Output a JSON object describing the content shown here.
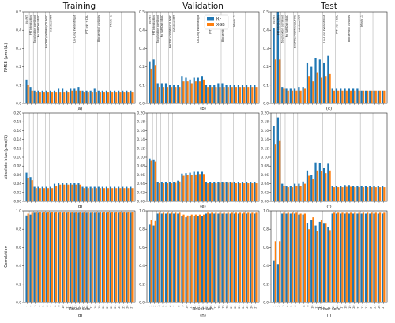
{
  "figure": {
    "column_titles": [
      "Training",
      "Validation",
      "Test"
    ],
    "row_ylabels": [
      "RMSE (μmol/L)",
      "Absolute bias (μmol/L)",
      "Correlation"
    ],
    "xlabel": "Driver sets",
    "panel_labels": [
      "(a)",
      "(b)",
      "(c)",
      "(d)",
      "(e)",
      "(f)",
      "(g)",
      "(h)",
      "(i)"
    ],
    "legend": [
      {
        "name": "RF",
        "color": "#1f77b4"
      },
      {
        "name": "XGB",
        "color": "#ff7f0e"
      }
    ],
    "row_yticks": [
      [
        "0.0",
        "0.1",
        "0.2",
        "0.3",
        "0.4",
        "0.5"
      ],
      [
        "0.00",
        "0.02",
        "0.04",
        "0.06",
        "0.08",
        "0.10",
        "0.12",
        "0.14",
        "0.16",
        "0.18",
        "0.20"
      ],
      [
        "0.0",
        "0.2",
        "0.4",
        "0.6",
        "0.8",
        "1.0"
      ]
    ],
    "x_ticks": [
      "1",
      "2",
      "3",
      "4",
      "5",
      "6",
      "7",
      "8",
      "9",
      "10",
      "11",
      "12",
      "13",
      "14",
      "15",
      "16",
      "17",
      "18",
      "19",
      "20",
      "21",
      "22",
      "23",
      "24",
      "25",
      "26",
      "27"
    ],
    "group_separators_after": [
      1,
      2,
      3,
      5,
      6,
      12,
      15,
      18,
      21,
      24
    ]
  },
  "annotations": {
    "labels": [
      "No PFT",
      "PFT introduction",
      "Zooplankton combined",
      "No VAR/Diat BBAC",
      "BAC/PRO/PYE/MIX/CEL/MAC",
      "Individual PFT",
      "Lat-Long incident light",
      "PFT only + CHL",
      "Biochemical variables",
      "Month - 1"
    ]
  },
  "chart_data": [
    {
      "type": "bar",
      "panel": "(a)",
      "row": "RMSE",
      "column": "Training",
      "ylabel": "RMSE (μmol/L)",
      "xlabel": "",
      "ylim": [
        0,
        0.5
      ],
      "categories": [
        "1",
        "2",
        "3",
        "4",
        "5",
        "6",
        "7",
        "8",
        "9",
        "10",
        "11",
        "12",
        "13",
        "14",
        "15",
        "16",
        "17",
        "18",
        "19",
        "20",
        "21",
        "22",
        "23",
        "24",
        "25",
        "26",
        "27"
      ],
      "series": [
        {
          "name": "RF",
          "values": [
            0.13,
            0.09,
            0.07,
            0.07,
            0.07,
            0.07,
            0.07,
            0.07,
            0.08,
            0.08,
            0.07,
            0.08,
            0.08,
            0.09,
            0.07,
            0.07,
            0.07,
            0.08,
            0.07,
            0.07,
            0.07,
            0.07,
            0.07,
            0.07,
            0.07,
            0.07,
            0.07
          ]
        },
        {
          "name": "XGB",
          "values": [
            0.1,
            0.07,
            0.06,
            0.06,
            0.06,
            0.06,
            0.06,
            0.06,
            0.06,
            0.06,
            0.06,
            0.07,
            0.07,
            0.07,
            0.06,
            0.06,
            0.06,
            0.06,
            0.06,
            0.06,
            0.06,
            0.06,
            0.06,
            0.06,
            0.06,
            0.06,
            0.06
          ]
        }
      ]
    },
    {
      "type": "bar",
      "panel": "(b)",
      "row": "RMSE",
      "column": "Validation",
      "ylabel": "",
      "xlabel": "",
      "ylim": [
        0,
        0.5
      ],
      "categories": [
        "1",
        "2",
        "3",
        "4",
        "5",
        "6",
        "7",
        "8",
        "9",
        "10",
        "11",
        "12",
        "13",
        "14",
        "15",
        "16",
        "17",
        "18",
        "19",
        "20",
        "21",
        "22",
        "23",
        "24",
        "25",
        "26",
        "27"
      ],
      "series": [
        {
          "name": "RF",
          "values": [
            0.23,
            0.24,
            0.11,
            0.11,
            0.11,
            0.1,
            0.1,
            0.1,
            0.15,
            0.14,
            0.13,
            0.14,
            0.14,
            0.15,
            0.1,
            0.1,
            0.1,
            0.11,
            0.11,
            0.1,
            0.1,
            0.1,
            0.1,
            0.1,
            0.1,
            0.1,
            0.1
          ]
        },
        {
          "name": "XGB",
          "values": [
            0.19,
            0.21,
            0.09,
            0.09,
            0.09,
            0.09,
            0.09,
            0.09,
            0.12,
            0.12,
            0.11,
            0.12,
            0.12,
            0.13,
            0.09,
            0.09,
            0.09,
            0.09,
            0.09,
            0.09,
            0.09,
            0.09,
            0.09,
            0.09,
            0.09,
            0.09,
            0.09
          ]
        }
      ]
    },
    {
      "type": "bar",
      "panel": "(c)",
      "row": "RMSE",
      "column": "Test",
      "ylabel": "",
      "xlabel": "",
      "ylim": [
        0,
        0.5
      ],
      "categories": [
        "1",
        "2",
        "3",
        "4",
        "5",
        "6",
        "7",
        "8",
        "9",
        "10",
        "11",
        "12",
        "13",
        "14",
        "15",
        "16",
        "17",
        "18",
        "19",
        "20",
        "21",
        "22",
        "23",
        "24",
        "25",
        "26",
        "27"
      ],
      "series": [
        {
          "name": "RF",
          "values": [
            0.41,
            0.5,
            0.09,
            0.08,
            0.08,
            0.08,
            0.09,
            0.09,
            0.22,
            0.2,
            0.25,
            0.24,
            0.22,
            0.26,
            0.08,
            0.08,
            0.08,
            0.08,
            0.08,
            0.08,
            0.08,
            0.07,
            0.07,
            0.07,
            0.07,
            0.07,
            0.07
          ]
        },
        {
          "name": "XGB",
          "values": [
            0.24,
            0.24,
            0.08,
            0.07,
            0.07,
            0.07,
            0.07,
            0.08,
            0.15,
            0.12,
            0.17,
            0.14,
            0.15,
            0.16,
            0.07,
            0.07,
            0.07,
            0.07,
            0.07,
            0.07,
            0.07,
            0.07,
            0.07,
            0.07,
            0.07,
            0.07,
            0.07
          ]
        }
      ]
    },
    {
      "type": "bar",
      "panel": "(d)",
      "row": "Absolute bias",
      "column": "Training",
      "ylabel": "Absolute bias (μmol/L)",
      "xlabel": "",
      "ylim": [
        0,
        0.2
      ],
      "categories": [
        "1",
        "2",
        "3",
        "4",
        "5",
        "6",
        "7",
        "8",
        "9",
        "10",
        "11",
        "12",
        "13",
        "14",
        "15",
        "16",
        "17",
        "18",
        "19",
        "20",
        "21",
        "22",
        "23",
        "24",
        "25",
        "26",
        "27"
      ],
      "series": [
        {
          "name": "RF",
          "values": [
            0.065,
            0.055,
            0.033,
            0.033,
            0.033,
            0.033,
            0.033,
            0.04,
            0.041,
            0.041,
            0.041,
            0.041,
            0.041,
            0.041,
            0.033,
            0.033,
            0.033,
            0.033,
            0.033,
            0.033,
            0.033,
            0.033,
            0.033,
            0.033,
            0.033,
            0.033,
            0.033
          ]
        },
        {
          "name": "XGB",
          "values": [
            0.052,
            0.048,
            0.03,
            0.03,
            0.03,
            0.03,
            0.03,
            0.035,
            0.038,
            0.038,
            0.038,
            0.038,
            0.038,
            0.038,
            0.03,
            0.03,
            0.03,
            0.03,
            0.03,
            0.03,
            0.03,
            0.03,
            0.03,
            0.03,
            0.03,
            0.03,
            0.03
          ]
        }
      ]
    },
    {
      "type": "bar",
      "panel": "(e)",
      "row": "Absolute bias",
      "column": "Validation",
      "ylabel": "",
      "xlabel": "",
      "ylim": [
        0,
        0.2
      ],
      "categories": [
        "1",
        "2",
        "3",
        "4",
        "5",
        "6",
        "7",
        "8",
        "9",
        "10",
        "11",
        "12",
        "13",
        "14",
        "15",
        "16",
        "17",
        "18",
        "19",
        "20",
        "21",
        "22",
        "23",
        "24",
        "25",
        "26",
        "27"
      ],
      "series": [
        {
          "name": "RF",
          "values": [
            0.097,
            0.095,
            0.044,
            0.044,
            0.044,
            0.043,
            0.044,
            0.047,
            0.063,
            0.064,
            0.065,
            0.067,
            0.067,
            0.067,
            0.043,
            0.043,
            0.043,
            0.044,
            0.044,
            0.044,
            0.044,
            0.044,
            0.044,
            0.043,
            0.043,
            0.043,
            0.044
          ]
        },
        {
          "name": "XGB",
          "values": [
            0.092,
            0.09,
            0.041,
            0.041,
            0.041,
            0.041,
            0.042,
            0.045,
            0.058,
            0.059,
            0.06,
            0.061,
            0.062,
            0.062,
            0.041,
            0.041,
            0.041,
            0.042,
            0.042,
            0.042,
            0.042,
            0.041,
            0.041,
            0.041,
            0.041,
            0.041,
            0.041
          ]
        }
      ]
    },
    {
      "type": "bar",
      "panel": "(f)",
      "row": "Absolute bias",
      "column": "Test",
      "ylabel": "",
      "xlabel": "",
      "ylim": [
        0,
        0.2
      ],
      "categories": [
        "1",
        "2",
        "3",
        "4",
        "5",
        "6",
        "7",
        "8",
        "9",
        "10",
        "11",
        "12",
        "13",
        "14",
        "15",
        "16",
        "17",
        "18",
        "19",
        "20",
        "21",
        "22",
        "23",
        "24",
        "25",
        "26",
        "27"
      ],
      "series": [
        {
          "name": "RF",
          "values": [
            0.17,
            0.19,
            0.04,
            0.035,
            0.035,
            0.04,
            0.04,
            0.045,
            0.07,
            0.06,
            0.088,
            0.087,
            0.075,
            0.085,
            0.035,
            0.035,
            0.035,
            0.037,
            0.037,
            0.035,
            0.035,
            0.035,
            0.035,
            0.034,
            0.034,
            0.034,
            0.035
          ]
        },
        {
          "name": "XGB",
          "values": [
            0.13,
            0.138,
            0.035,
            0.032,
            0.032,
            0.035,
            0.035,
            0.04,
            0.058,
            0.05,
            0.07,
            0.068,
            0.064,
            0.07,
            0.032,
            0.032,
            0.032,
            0.033,
            0.033,
            0.032,
            0.032,
            0.032,
            0.032,
            0.032,
            0.032,
            0.032,
            0.032
          ]
        }
      ]
    },
    {
      "type": "bar",
      "panel": "(g)",
      "row": "Correlation",
      "column": "Training",
      "ylabel": "Correlation",
      "xlabel": "Driver sets",
      "ylim": [
        0,
        1.0
      ],
      "categories": [
        "1",
        "2",
        "3",
        "4",
        "5",
        "6",
        "7",
        "8",
        "9",
        "10",
        "11",
        "12",
        "13",
        "14",
        "15",
        "16",
        "17",
        "18",
        "19",
        "20",
        "21",
        "22",
        "23",
        "24",
        "25",
        "26",
        "27"
      ],
      "series": [
        {
          "name": "RF",
          "values": [
            0.95,
            0.96,
            0.98,
            0.98,
            0.98,
            0.98,
            0.98,
            0.98,
            0.98,
            0.98,
            0.98,
            0.98,
            0.98,
            0.98,
            0.98,
            0.98,
            0.98,
            0.98,
            0.98,
            0.98,
            0.98,
            0.98,
            0.98,
            0.98,
            0.98,
            0.98,
            0.98
          ]
        },
        {
          "name": "XGB",
          "values": [
            0.97,
            0.98,
            0.99,
            0.99,
            0.99,
            0.99,
            0.99,
            0.99,
            0.99,
            0.99,
            0.99,
            0.99,
            0.99,
            0.99,
            0.99,
            0.99,
            0.99,
            0.99,
            0.99,
            0.99,
            0.99,
            0.99,
            0.99,
            0.99,
            0.99,
            0.99,
            0.99
          ]
        }
      ]
    },
    {
      "type": "bar",
      "panel": "(h)",
      "row": "Correlation",
      "column": "Validation",
      "ylabel": "",
      "xlabel": "Driver sets",
      "ylim": [
        0,
        1.0
      ],
      "categories": [
        "1",
        "2",
        "3",
        "4",
        "5",
        "6",
        "7",
        "8",
        "9",
        "10",
        "11",
        "12",
        "13",
        "14",
        "15",
        "16",
        "17",
        "18",
        "19",
        "20",
        "21",
        "22",
        "23",
        "24",
        "25",
        "26",
        "27"
      ],
      "series": [
        {
          "name": "RF",
          "values": [
            0.85,
            0.84,
            0.97,
            0.97,
            0.97,
            0.97,
            0.97,
            0.97,
            0.94,
            0.93,
            0.94,
            0.94,
            0.94,
            0.94,
            0.97,
            0.97,
            0.97,
            0.97,
            0.97,
            0.97,
            0.97,
            0.97,
            0.97,
            0.97,
            0.97,
            0.97,
            0.97
          ]
        },
        {
          "name": "XGB",
          "values": [
            0.9,
            0.89,
            0.98,
            0.98,
            0.98,
            0.98,
            0.98,
            0.98,
            0.96,
            0.95,
            0.96,
            0.96,
            0.96,
            0.96,
            0.98,
            0.98,
            0.98,
            0.98,
            0.98,
            0.98,
            0.98,
            0.98,
            0.98,
            0.98,
            0.98,
            0.98,
            0.98
          ]
        }
      ]
    },
    {
      "type": "bar",
      "panel": "(i)",
      "row": "Correlation",
      "column": "Test",
      "ylabel": "",
      "xlabel": "Driver sets",
      "ylim": [
        0,
        1.0
      ],
      "categories": [
        "1",
        "2",
        "3",
        "4",
        "5",
        "6",
        "7",
        "8",
        "9",
        "10",
        "11",
        "12",
        "13",
        "14",
        "15",
        "16",
        "17",
        "18",
        "19",
        "20",
        "21",
        "22",
        "23",
        "24",
        "25",
        "26",
        "27"
      ],
      "series": [
        {
          "name": "RF",
          "values": [
            0.46,
            0.42,
            0.97,
            0.97,
            0.97,
            0.97,
            0.96,
            0.96,
            0.87,
            0.9,
            0.84,
            0.88,
            0.86,
            0.82,
            0.97,
            0.97,
            0.97,
            0.97,
            0.97,
            0.97,
            0.97,
            0.97,
            0.97,
            0.97,
            0.97,
            0.97,
            0.97
          ]
        },
        {
          "name": "XGB",
          "values": [
            0.67,
            0.67,
            0.98,
            0.98,
            0.98,
            0.98,
            0.97,
            0.97,
            0.8,
            0.93,
            0.78,
            0.9,
            0.86,
            0.79,
            0.98,
            0.98,
            0.98,
            0.98,
            0.98,
            0.98,
            0.98,
            0.98,
            0.98,
            0.98,
            0.98,
            0.98,
            0.98
          ]
        }
      ]
    }
  ]
}
